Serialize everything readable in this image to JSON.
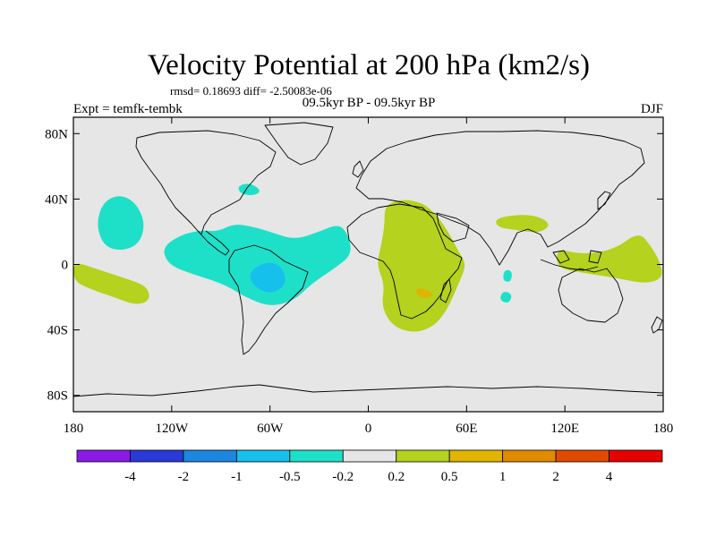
{
  "chart_data": {
    "type": "heatmap",
    "title": "Velocity Potential at 200 hPa (km2/s)",
    "stats_text": "rmsd= 0.18693 diff= -2.50083e-06",
    "subtitle": "09.5kyr BP - 09.5kyr BP",
    "left_label": "Expt = temfk-tembk",
    "right_label": "DJF",
    "lon_range": [
      -180,
      180
    ],
    "lat_range": [
      -90,
      90
    ],
    "x_ticks": [
      {
        "value": -180,
        "label": "180"
      },
      {
        "value": -120,
        "label": "120W"
      },
      {
        "value": -60,
        "label": "60W"
      },
      {
        "value": 0,
        "label": "0"
      },
      {
        "value": 60,
        "label": "60E"
      },
      {
        "value": 120,
        "label": "120E"
      },
      {
        "value": 180,
        "label": "180"
      }
    ],
    "y_ticks": [
      {
        "value": 80,
        "label": "80N"
      },
      {
        "value": 40,
        "label": "40N"
      },
      {
        "value": 0,
        "label": "0"
      },
      {
        "value": -40,
        "label": "40S"
      },
      {
        "value": -80,
        "label": "80S"
      }
    ],
    "colorbar": {
      "colors": [
        "#8c1ae6",
        "#2a3ad8",
        "#1c86e0",
        "#16c0ec",
        "#1ee0c8",
        "#e6e6e6",
        "#b4d21e",
        "#e0b400",
        "#e28a00",
        "#e04a00",
        "#e60000"
      ],
      "labels": [
        "-4",
        "-2",
        "-1",
        "-0.5",
        "-0.2",
        "0.2",
        "0.5",
        "1",
        "2",
        "4"
      ]
    },
    "background_color": "#e6e6e6",
    "regions": [
      {
        "name": "north-pacific-negative",
        "level": "-0.5 to -0.2",
        "color": "#1ee0c8",
        "points": [
          [
            -162,
            38
          ],
          [
            -152,
            43
          ],
          [
            -142,
            38
          ],
          [
            -136,
            25
          ],
          [
            -140,
            12
          ],
          [
            -152,
            8
          ],
          [
            -162,
            12
          ],
          [
            -166,
            25
          ]
        ]
      },
      {
        "name": "atlantic-americas-negative",
        "level": "-0.5 to -0.2",
        "color": "#1ee0c8",
        "points": [
          [
            -92,
            20
          ],
          [
            -82,
            25
          ],
          [
            -70,
            23
          ],
          [
            -60,
            20
          ],
          [
            -45,
            15
          ],
          [
            -30,
            20
          ],
          [
            -18,
            25
          ],
          [
            -12,
            18
          ],
          [
            -10,
            6
          ],
          [
            -20,
            -2
          ],
          [
            -35,
            -12
          ],
          [
            -45,
            -22
          ],
          [
            -60,
            -26
          ],
          [
            -75,
            -20
          ],
          [
            -88,
            -12
          ],
          [
            -110,
            -5
          ],
          [
            -122,
            0
          ],
          [
            -126,
            10
          ],
          [
            -115,
            18
          ],
          [
            -102,
            21
          ]
        ]
      },
      {
        "name": "north-america-negative",
        "level": "-0.5 to -0.2",
        "color": "#1ee0c8",
        "points": [
          [
            -80,
            48
          ],
          [
            -72,
            50
          ],
          [
            -65,
            45
          ],
          [
            -70,
            42
          ],
          [
            -78,
            43
          ]
        ]
      },
      {
        "name": "south-america-core-negative",
        "level": "-1 to -0.5",
        "color": "#16c0ec",
        "points": [
          [
            -70,
            -2
          ],
          [
            -60,
            2
          ],
          [
            -52,
            -2
          ],
          [
            -50,
            -12
          ],
          [
            -58,
            -18
          ],
          [
            -68,
            -15
          ],
          [
            -73,
            -8
          ]
        ]
      },
      {
        "name": "indian-ocean-negative-1",
        "level": "-0.5 to -0.2",
        "color": "#1ee0c8",
        "points": [
          [
            83,
            -3
          ],
          [
            88,
            -4
          ],
          [
            87,
            -11
          ],
          [
            82,
            -10
          ]
        ]
      },
      {
        "name": "indian-ocean-negative-2",
        "level": "-0.5 to -0.2",
        "color": "#1ee0c8",
        "points": [
          [
            82,
            -16
          ],
          [
            88,
            -18
          ],
          [
            86,
            -24
          ],
          [
            80,
            -22
          ]
        ]
      },
      {
        "name": "africa-positive",
        "level": "0.2 to 0.5",
        "color": "#b4d21e",
        "points": [
          [
            10,
            36
          ],
          [
            20,
            40
          ],
          [
            33,
            38
          ],
          [
            42,
            30
          ],
          [
            50,
            18
          ],
          [
            55,
            8
          ],
          [
            60,
            0
          ],
          [
            55,
            -12
          ],
          [
            48,
            -28
          ],
          [
            40,
            -38
          ],
          [
            28,
            -42
          ],
          [
            15,
            -38
          ],
          [
            8,
            -26
          ],
          [
            10,
            -12
          ],
          [
            5,
            0
          ],
          [
            8,
            12
          ],
          [
            10,
            25
          ]
        ]
      },
      {
        "name": "africa-core-positive",
        "level": "0.5 to 1",
        "color": "#e0b400",
        "points": [
          [
            30,
            -14
          ],
          [
            37,
            -16
          ],
          [
            40,
            -19
          ],
          [
            34,
            -21
          ],
          [
            29,
            -18
          ]
        ]
      },
      {
        "name": "south-asia-positive",
        "level": "0.2 to 0.5",
        "color": "#b4d21e",
        "points": [
          [
            78,
            29
          ],
          [
            100,
            31
          ],
          [
            112,
            25
          ],
          [
            105,
            19
          ],
          [
            90,
            21
          ],
          [
            78,
            23
          ]
        ]
      },
      {
        "name": "maritime-continent-positive",
        "level": "0.2 to 0.5",
        "color": "#b4d21e",
        "points": [
          [
            115,
            10
          ],
          [
            130,
            6
          ],
          [
            150,
            9
          ],
          [
            165,
            20
          ],
          [
            172,
            12
          ],
          [
            178,
            2
          ],
          [
            180,
            -8
          ],
          [
            170,
            -12
          ],
          [
            150,
            -8
          ],
          [
            130,
            -5
          ],
          [
            115,
            -2
          ]
        ]
      },
      {
        "name": "east-pacific-positive",
        "level": "0.2 to 0.5",
        "color": "#b4d21e",
        "points": [
          [
            -180,
            2
          ],
          [
            -168,
            -2
          ],
          [
            -150,
            -8
          ],
          [
            -135,
            -13
          ],
          [
            -133,
            -22
          ],
          [
            -142,
            -25
          ],
          [
            -155,
            -20
          ],
          [
            -170,
            -15
          ],
          [
            -180,
            -10
          ]
        ]
      }
    ]
  }
}
